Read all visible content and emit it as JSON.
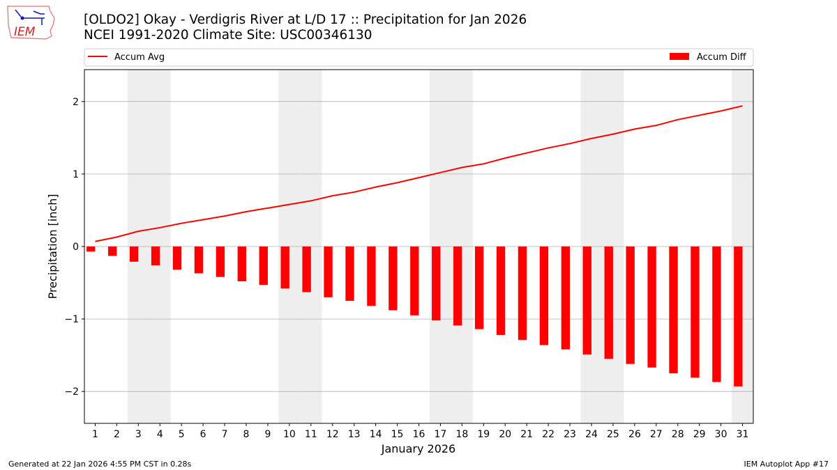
{
  "header": {
    "title_line1": "[OLDO2] Okay - Verdigris River at L/D 17 :: Precipitation for Jan 2026",
    "title_line2": "NCEI 1991-2020 Climate Site: USC00346130",
    "logo_text": "IEM"
  },
  "footer": {
    "generated": "Generated at 22 Jan 2026 4:55 PM CST in 0.28s",
    "app": "IEM Autoplot App #17"
  },
  "chart_data": {
    "type": "bar",
    "xlabel": "January 2026",
    "ylabel": "Precipitation [inch]",
    "xlim": [
      0.5,
      31.5
    ],
    "ylim": [
      -2.44,
      2.44
    ],
    "yticks": [
      -2,
      -1,
      0,
      1,
      2
    ],
    "ytick_labels": [
      "−2",
      "−1",
      "0",
      "1",
      "2"
    ],
    "grid": true,
    "legend_placement": "top",
    "shaded_days": [
      3,
      4,
      10,
      11,
      17,
      18,
      24,
      25,
      31
    ],
    "colors": {
      "line": "#ff0000",
      "bar": "#ff0000",
      "shade": "#eeeeee",
      "grid": "#b0b0b0"
    },
    "x": [
      1,
      2,
      3,
      4,
      5,
      6,
      7,
      8,
      9,
      10,
      11,
      12,
      13,
      14,
      15,
      16,
      17,
      18,
      19,
      20,
      21,
      22,
      23,
      24,
      25,
      26,
      27,
      28,
      29,
      30,
      31
    ],
    "series": [
      {
        "name": "Accum Avg",
        "type": "line",
        "values": [
          0.07,
          0.13,
          0.21,
          0.26,
          0.32,
          0.37,
          0.42,
          0.48,
          0.53,
          0.58,
          0.63,
          0.7,
          0.75,
          0.82,
          0.88,
          0.95,
          1.02,
          1.09,
          1.14,
          1.22,
          1.29,
          1.36,
          1.42,
          1.49,
          1.55,
          1.62,
          1.67,
          1.75,
          1.81,
          1.87,
          1.94
        ]
      },
      {
        "name": "Accum Diff",
        "type": "bar",
        "values": [
          -0.07,
          -0.13,
          -0.21,
          -0.26,
          -0.32,
          -0.37,
          -0.42,
          -0.48,
          -0.53,
          -0.58,
          -0.63,
          -0.7,
          -0.75,
          -0.82,
          -0.88,
          -0.95,
          -1.02,
          -1.09,
          -1.14,
          -1.22,
          -1.29,
          -1.36,
          -1.42,
          -1.49,
          -1.55,
          -1.62,
          -1.67,
          -1.75,
          -1.81,
          -1.87,
          -1.93
        ]
      }
    ]
  }
}
